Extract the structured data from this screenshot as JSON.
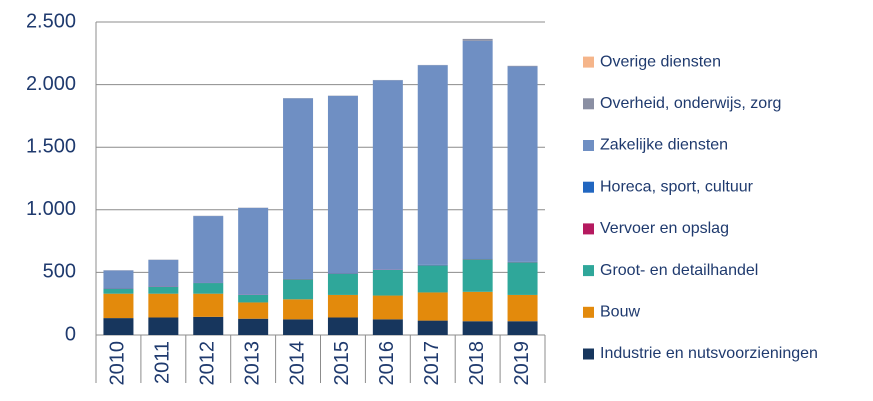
{
  "chart_data": {
    "type": "stacked_bar",
    "categories": [
      "2010",
      "2011",
      "2012",
      "2013",
      "2014",
      "2015",
      "2016",
      "2017",
      "2018",
      "2019"
    ],
    "series": [
      {
        "name": "Industrie en nutsvoorzieningen",
        "color": "#17365d",
        "values": [
          135,
          140,
          145,
          130,
          125,
          140,
          125,
          115,
          110,
          110
        ]
      },
      {
        "name": "Bouw",
        "color": "#e38a0c",
        "values": [
          195,
          190,
          185,
          130,
          160,
          180,
          190,
          225,
          235,
          210
        ]
      },
      {
        "name": "Groot- en detailhandel",
        "color": "#2fa79a",
        "values": [
          40,
          55,
          85,
          60,
          160,
          170,
          205,
          215,
          260,
          260
        ]
      },
      {
        "name": "Vervoer en opslag",
        "color": "#b5195f",
        "values": [
          2,
          2,
          2,
          2,
          2,
          2,
          2,
          2,
          2,
          2
        ]
      },
      {
        "name": "Horeca, sport, cultuur",
        "color": "#2166c0",
        "values": [
          3,
          3,
          3,
          3,
          3,
          3,
          3,
          3,
          3,
          3
        ]
      },
      {
        "name": "Zakelijke diensten",
        "color": "#6f8fc3",
        "values": [
          140,
          210,
          530,
          690,
          1440,
          1415,
          1510,
          1595,
          1740,
          1560
        ]
      },
      {
        "name": "Overheid, onderwijs, zorg",
        "color": "#8a8fa3",
        "values": [
          2,
          2,
          2,
          2,
          2,
          2,
          2,
          2,
          15,
          5
        ]
      },
      {
        "name": "Overige diensten",
        "color": "#f5b58a",
        "values": [
          0,
          0,
          0,
          0,
          0,
          0,
          0,
          0,
          0,
          0
        ]
      }
    ],
    "ylim": [
      0,
      2500
    ],
    "yticks": [
      0,
      500,
      {
        "value": 1000,
        "label": "1.000"
      },
      {
        "value": 1500,
        "label": "1.500"
      },
      {
        "value": 2000,
        "label": "2.000"
      },
      {
        "value": 2500,
        "label": "2.500"
      }
    ],
    "grid": true,
    "legend": "right"
  }
}
